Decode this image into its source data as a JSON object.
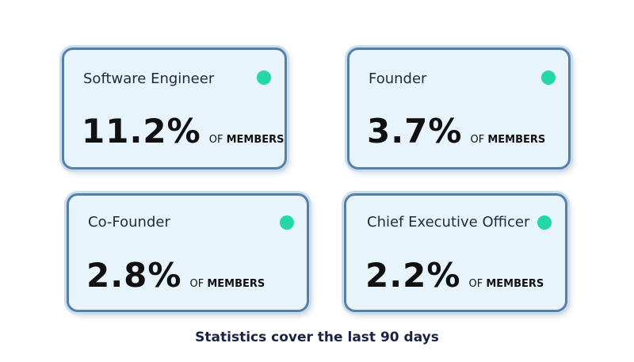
{
  "cards": [
    {
      "title": "Software Engineer",
      "value": "11.2%",
      "unit_of": "OF",
      "unit_members": "MEMBERS"
    },
    {
      "title": "Founder",
      "value": "3.7%",
      "unit_of": "OF",
      "unit_members": "MEMBERS"
    },
    {
      "title": "Co-Founder",
      "value": "2.8%",
      "unit_of": "OF",
      "unit_members": "MEMBERS"
    },
    {
      "title": "Chief Executive Officer",
      "value": "2.2%",
      "unit_of": "OF",
      "unit_members": "MEMBERS"
    }
  ],
  "indicator_color": "#22d9a6",
  "footer": "Statistics cover the last 90 days"
}
